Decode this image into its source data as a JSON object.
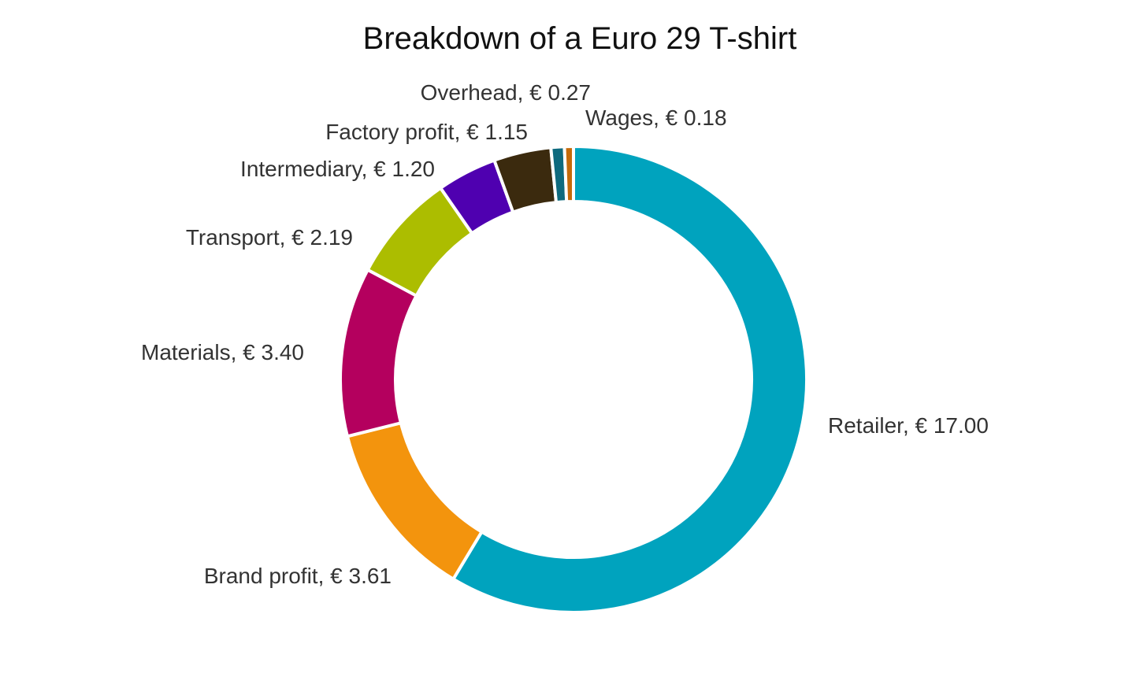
{
  "chart_data": {
    "type": "pie",
    "title": "Breakdown of a Euro 29 T-shirt",
    "donut": true,
    "slices": [
      {
        "label": "Retailer, € 17.00",
        "name": "Retailer",
        "value": 17.0,
        "color": "#00a3be"
      },
      {
        "label": "Brand profit, € 3.61",
        "name": "Brand profit",
        "value": 3.61,
        "color": "#f3940d"
      },
      {
        "label": "Materials, € 3.40",
        "name": "Materials",
        "value": 3.4,
        "color": "#b4005e"
      },
      {
        "label": "Transport, € 2.19",
        "name": "Transport",
        "value": 2.19,
        "color": "#acbd00"
      },
      {
        "label": "Intermediary, € 1.20",
        "name": "Intermediary",
        "value": 1.2,
        "color": "#4f00b0"
      },
      {
        "label": "Factory profit, € 1.15",
        "name": "Factory profit",
        "value": 1.15,
        "color": "#3b2a0e"
      },
      {
        "label": "Overhead, € 0.27",
        "name": "Overhead",
        "value": 0.27,
        "color": "#0e6a7e"
      },
      {
        "label": "Wages, € 0.18",
        "name": "Wages",
        "value": 0.18,
        "color": "#c46a0a"
      }
    ]
  }
}
